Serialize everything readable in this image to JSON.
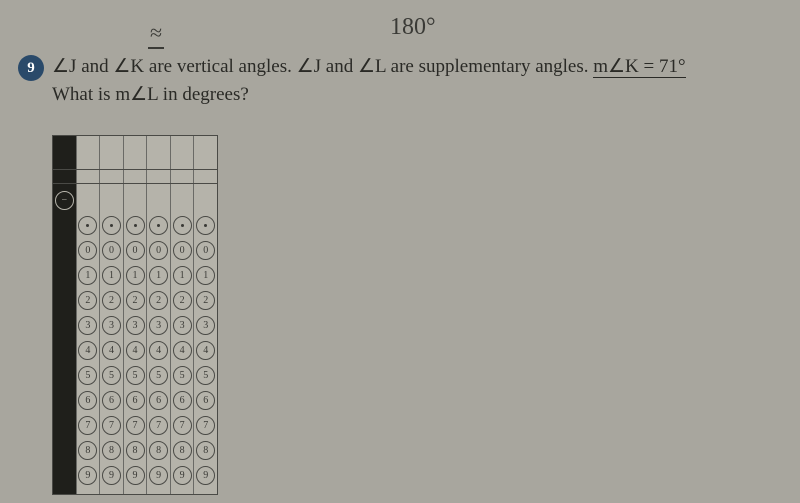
{
  "handwriting": {
    "top1": "≈",
    "top2": "180°"
  },
  "question": {
    "number": "9",
    "line1_a": "∠J",
    "line1_b": " and ",
    "line1_c": "∠K",
    "line1_d": " are vertical angles. ",
    "line1_e": "∠J",
    "line1_f": " and ",
    "line1_g": "∠L",
    "line1_h": " are supplementary angles. ",
    "line1_i": "m∠K = 71°",
    "line2_a": "What is ",
    "line2_b": "m∠L",
    "line2_c": " in degrees?"
  },
  "grid": {
    "columns": 7,
    "black_column_index": 0,
    "minus_row_col": 0,
    "decimal_row_cols": [
      1,
      2,
      3,
      4,
      5,
      6
    ],
    "digits": [
      "0",
      "1",
      "2",
      "3",
      "4",
      "5",
      "6",
      "7",
      "8",
      "9"
    ],
    "digit_cols": [
      1,
      2,
      3,
      4,
      5,
      6
    ]
  }
}
